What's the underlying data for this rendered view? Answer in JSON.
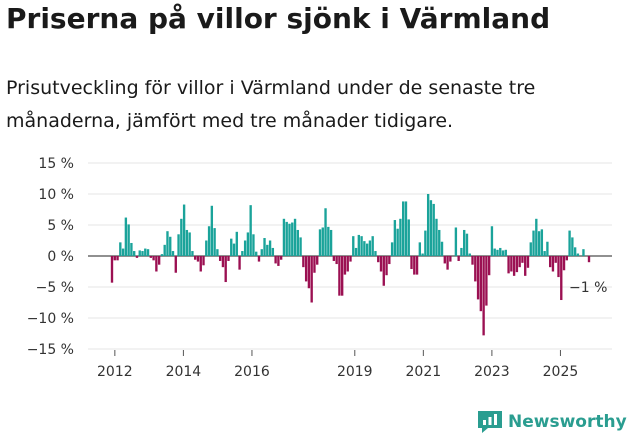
{
  "title": "Priserna på villor sjönk i Värmland",
  "subtitle": "Prisutveckling för villor i Värmland under de senaste tre månaderna, jämfört med tre månader tidigare.",
  "brand": {
    "name": "Newsworthy"
  },
  "colors": {
    "positive": "#1aa39a",
    "negative": "#9b1052",
    "grid": "#e5e5e5",
    "brand": "#2a9d90"
  },
  "chart_data": {
    "type": "bar",
    "ylim": [
      -15,
      15
    ],
    "yticks": [
      15,
      10,
      5,
      0,
      -5,
      -10,
      -15
    ],
    "ytick_labels": [
      "15 %",
      "10 %",
      "5 %",
      "0 %",
      "−5 %",
      "−10 %",
      "−15 %"
    ],
    "x_start": 2011.917,
    "x_end": 2025.833,
    "xticks": [
      2012,
      2014,
      2016,
      2019,
      2021,
      2023,
      2025
    ],
    "annotation": {
      "text": "−1 %",
      "x": 2025.833,
      "y": -1
    },
    "values": [
      -4.3,
      -0.7,
      -0.7,
      2.2,
      1.2,
      6.2,
      5.1,
      2.1,
      0.8,
      -0.3,
      0.9,
      0.8,
      1.2,
      1.1,
      -0.3,
      -0.7,
      -2.5,
      -1.4,
      0.3,
      1.8,
      4.0,
      3.1,
      0.8,
      -2.7,
      3.5,
      6.0,
      8.3,
      4.2,
      3.8,
      0.8,
      -0.6,
      -0.9,
      -2.5,
      -1.5,
      2.5,
      4.8,
      8.1,
      4.5,
      1.1,
      -0.8,
      -1.8,
      -4.2,
      -0.8,
      2.8,
      2.0,
      3.9,
      -2.2,
      0.8,
      2.5,
      3.8,
      8.2,
      3.5,
      0.7,
      -0.9,
      1.1,
      2.9,
      1.8,
      2.5,
      1.3,
      -1.2,
      -1.6,
      -0.6,
      6.0,
      5.5,
      5.2,
      5.4,
      6.0,
      4.2,
      3.0,
      -1.8,
      -4.1,
      -5.2,
      -7.5,
      -2.7,
      -1.4,
      4.3,
      4.6,
      7.7,
      4.7,
      4.2,
      -0.8,
      -1.3,
      -6.4,
      -6.4,
      -3.0,
      -2.5,
      -0.9,
      3.2,
      1.3,
      3.4,
      3.2,
      2.4,
      2.0,
      2.5,
      3.2,
      0.8,
      -1.0,
      -2.5,
      -4.8,
      -3.1,
      -1.3,
      2.2,
      5.8,
      4.4,
      6.0,
      8.8,
      8.8,
      5.9,
      -2.1,
      -3.0,
      -3.0,
      2.2,
      0.4,
      4.1,
      10.0,
      9.0,
      8.4,
      6.0,
      4.2,
      2.3,
      -1.2,
      -2.2,
      -0.9,
      0.0,
      4.6,
      -0.8,
      1.3,
      4.2,
      3.6,
      0.4,
      -1.4,
      -4.1,
      -7.0,
      -8.9,
      -12.8,
      -8.0,
      -3.1,
      4.8,
      1.2,
      1.0,
      1.3,
      0.9,
      1.0,
      -2.8,
      -2.5,
      -3.2,
      -2.6,
      -1.8,
      -1.1,
      -3.2,
      -1.9,
      2.2,
      4.1,
      6.0,
      4.0,
      4.3,
      0.8,
      2.3,
      -1.8,
      -2.5,
      -1.1,
      -3.4,
      -7.1,
      -2.3,
      -0.7,
      4.1,
      3.0,
      1.4,
      0.4,
      0.0,
      1.1,
      0.0,
      -1.0
    ]
  }
}
